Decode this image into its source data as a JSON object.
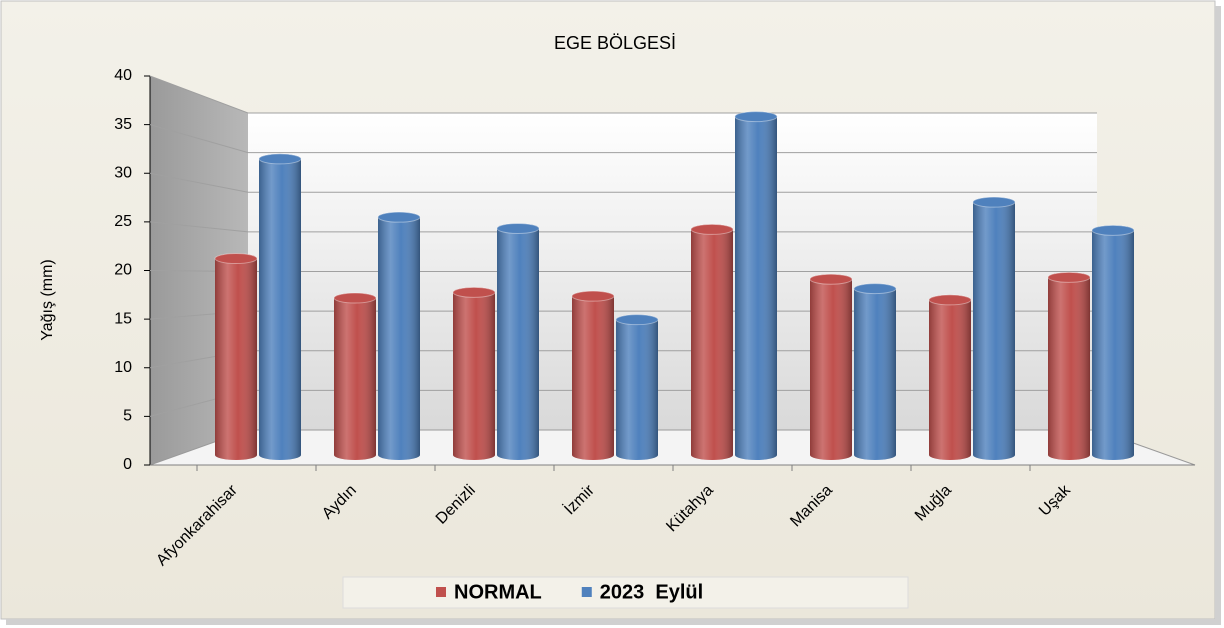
{
  "chart_data": {
    "type": "bar",
    "title": "EGE BÖLGESİ",
    "y_label": "Yağış (mm)",
    "categories": [
      "Afyonkarahisar",
      "Aydın",
      "Denizli",
      "İzmir",
      "Kütahya",
      "Manisa",
      "Muğla",
      "Uşak"
    ],
    "series": [
      {
        "name": "NORMAL",
        "color": "#c0504d",
        "values": [
          20.9,
          16.7,
          17.3,
          16.9,
          24.0,
          18.7,
          16.5,
          18.9
        ]
      },
      {
        "name": "2023  Eylül",
        "color": "#4f81bd",
        "values": [
          31.5,
          25.3,
          24.1,
          14.4,
          36.0,
          17.7,
          26.9,
          23.9
        ]
      }
    ],
    "ylim": [
      0,
      40
    ],
    "yticks": [
      0,
      5,
      10,
      15,
      20,
      25,
      30,
      35,
      40
    ],
    "grid": true,
    "legend": "bottom"
  }
}
